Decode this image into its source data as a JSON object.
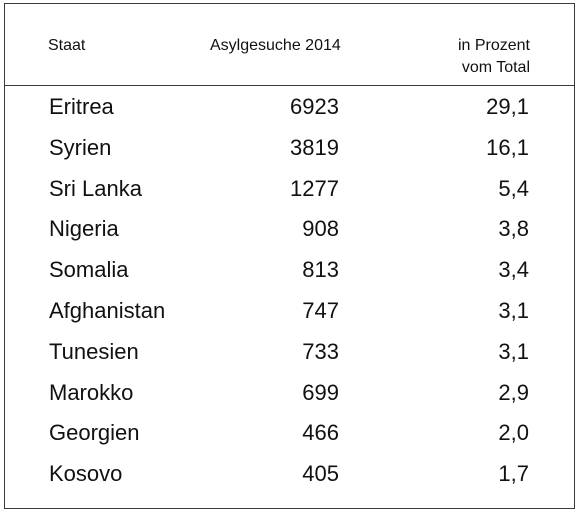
{
  "table": {
    "headers": {
      "state": "Staat",
      "applications": "Asylgesuche 2014",
      "percent_line1": "in Prozent",
      "percent_line2": "vom Total"
    },
    "rows": [
      {
        "state": "Eritrea",
        "applications": "6923",
        "percent": "29,1"
      },
      {
        "state": "Syrien",
        "applications": "3819",
        "percent": "16,1"
      },
      {
        "state": "Sri Lanka",
        "applications": "1277",
        "percent": "5,4"
      },
      {
        "state": "Nigeria",
        "applications": "908",
        "percent": "3,8"
      },
      {
        "state": "Somalia",
        "applications": "813",
        "percent": "3,4"
      },
      {
        "state": "Afghanistan",
        "applications": "747",
        "percent": "3,1"
      },
      {
        "state": "Tunesien",
        "applications": "733",
        "percent": "3,1"
      },
      {
        "state": "Marokko",
        "applications": "699",
        "percent": "2,9"
      },
      {
        "state": "Georgien",
        "applications": "466",
        "percent": "2,0"
      },
      {
        "state": "Kosovo",
        "applications": "405",
        "percent": "1,7"
      }
    ]
  }
}
